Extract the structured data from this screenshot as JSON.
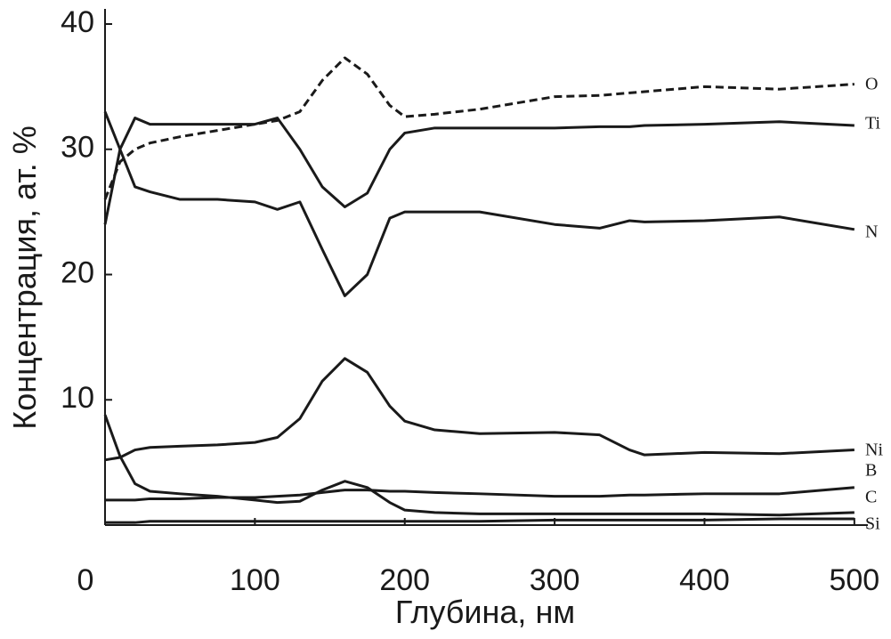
{
  "chart_data": {
    "type": "line",
    "x_label": "Глубина, нм",
    "y_label": "Концентрация, ат. %",
    "x": [
      0,
      10,
      20,
      30,
      50,
      75,
      100,
      115,
      130,
      145,
      160,
      175,
      190,
      200,
      220,
      250,
      300,
      330,
      350,
      360,
      400,
      450,
      500
    ],
    "series": [
      {
        "name": "O",
        "color": "#1a1a1a",
        "dash": true,
        "values": [
          26,
          29,
          30,
          30.5,
          31,
          31.5,
          32,
          32.3,
          33,
          35.5,
          37.3,
          36,
          33.5,
          32.6,
          32.8,
          33.2,
          34.2,
          34.3,
          34.5,
          34.6,
          35,
          34.8,
          35.2
        ]
      },
      {
        "name": "Ti",
        "color": "#1a1a1a",
        "values": [
          24,
          30,
          32.5,
          32,
          32,
          32,
          32,
          32.5,
          30,
          27,
          25.4,
          26.5,
          30,
          31.3,
          31.7,
          31.7,
          31.7,
          31.8,
          31.8,
          31.9,
          32,
          32.2,
          31.9
        ]
      },
      {
        "name": "N",
        "color": "#1a1a1a",
        "values": [
          33,
          30,
          27,
          26.6,
          26,
          26,
          25.8,
          25.2,
          25.8,
          22,
          18.3,
          20,
          24.5,
          25,
          25,
          25,
          24,
          23.7,
          24.3,
          24.2,
          24.3,
          24.6,
          23.6
        ]
      },
      {
        "name": "Ni",
        "color": "#1a1a1a",
        "values": [
          5.2,
          5.4,
          6,
          6.2,
          6.3,
          6.4,
          6.6,
          7,
          8.5,
          11.5,
          13.3,
          12.2,
          9.5,
          8.3,
          7.6,
          7.3,
          7.4,
          7.2,
          6,
          5.6,
          5.8,
          5.7,
          6
        ]
      },
      {
        "name": "B",
        "color": "#1a1a1a",
        "values": [
          2,
          2,
          2,
          2.1,
          2.1,
          2.2,
          2.2,
          2.3,
          2.4,
          2.6,
          2.8,
          2.8,
          2.7,
          2.7,
          2.6,
          2.5,
          2.3,
          2.3,
          2.4,
          2.4,
          2.5,
          2.5,
          3
        ]
      },
      {
        "name": "C",
        "color": "#1a1a1a",
        "values": [
          8.8,
          5.5,
          3.3,
          2.7,
          2.5,
          2.3,
          2,
          1.8,
          1.9,
          2.8,
          3.5,
          3,
          1.8,
          1.2,
          1,
          0.9,
          0.9,
          0.9,
          0.9,
          0.9,
          0.9,
          0.8,
          1
        ]
      },
      {
        "name": "Si",
        "color": "#1a1a1a",
        "values": [
          0.2,
          0.2,
          0.2,
          0.3,
          0.3,
          0.3,
          0.3,
          0.3,
          0.3,
          0.3,
          0.3,
          0.3,
          0.3,
          0.3,
          0.3,
          0.3,
          0.4,
          0.4,
          0.4,
          0.4,
          0.4,
          0.5,
          0.5
        ]
      }
    ],
    "xlim": [
      0,
      509
    ],
    "ylim": [
      0,
      40
    ],
    "xticks": [
      0,
      100,
      200,
      300,
      400,
      500
    ],
    "yticks": [
      10,
      20,
      30,
      40
    ]
  }
}
